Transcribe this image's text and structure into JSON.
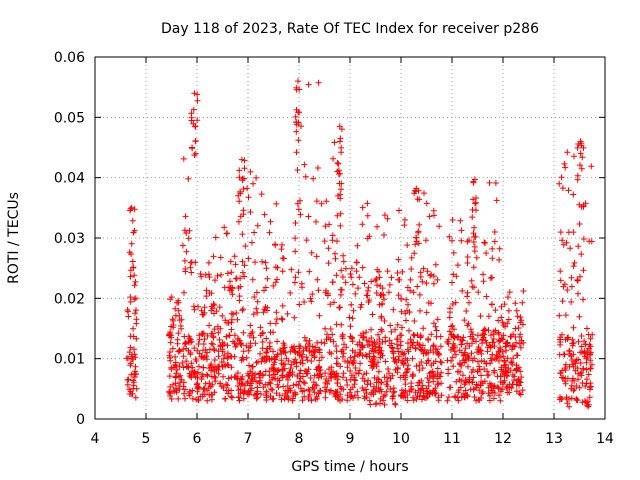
{
  "chart_data": {
    "type": "scatter",
    "title": "Day 118 of 2023, Rate Of TEC Index for receiver p286",
    "xlabel": "GPS time / hours",
    "ylabel": "ROTI / TECUs",
    "xlim": [
      4,
      14
    ],
    "ylim": [
      0,
      0.06
    ],
    "x_ticks": [
      "4",
      "5",
      "6",
      "7",
      "8",
      "9",
      "10",
      "11",
      "12",
      "13",
      "14"
    ],
    "y_ticks": [
      "0",
      "0.01",
      "0.02",
      "0.03",
      "0.04",
      "0.05",
      "0.06"
    ],
    "grid": true,
    "marker": "+",
    "color": "#ff0000",
    "clusters": [
      {
        "x": [
          4.62,
          4.82
        ],
        "y_base": [
          0.003,
          0.012
        ],
        "y_peak": 0.035
      },
      {
        "x": [
          5.45,
          5.72
        ],
        "y_base": [
          0.003,
          0.013
        ],
        "y_peak": 0.021
      },
      {
        "x": [
          5.72,
          6.05
        ],
        "y_base": [
          0.003,
          0.014
        ],
        "y_peak": 0.054
      },
      {
        "x": [
          6.05,
          6.8
        ],
        "y_base": [
          0.003,
          0.015
        ],
        "y_peak": 0.032
      },
      {
        "x": [
          6.8,
          7.3
        ],
        "y_base": [
          0.003,
          0.015
        ],
        "y_peak": 0.043
      },
      {
        "x": [
          7.3,
          7.9
        ],
        "y_base": [
          0.003,
          0.012
        ],
        "y_peak": 0.036
      },
      {
        "x": [
          7.9,
          8.45
        ],
        "y_base": [
          0.003,
          0.013
        ],
        "y_peak": 0.056
      },
      {
        "x": [
          8.5,
          8.95
        ],
        "y_base": [
          0.003,
          0.015
        ],
        "y_peak": 0.048
      },
      {
        "x": [
          8.95,
          9.95
        ],
        "y_base": [
          0.002,
          0.014
        ],
        "y_peak": 0.036
      },
      {
        "x": [
          9.95,
          10.8
        ],
        "y_base": [
          0.003,
          0.014
        ],
        "y_peak": 0.039
      },
      {
        "x": [
          10.9,
          11.4
        ],
        "y_base": [
          0.003,
          0.014
        ],
        "y_peak": 0.034
      },
      {
        "x": [
          11.4,
          11.95
        ],
        "y_base": [
          0.003,
          0.015
        ],
        "y_peak": 0.04
      },
      {
        "x": [
          11.95,
          12.4
        ],
        "y_base": [
          0.004,
          0.013
        ],
        "y_peak": 0.022
      },
      {
        "x": [
          13.1,
          13.75
        ],
        "y_base": [
          0.002,
          0.014
        ],
        "y_peak": 0.046
      }
    ],
    "peaks": [
      {
        "x": 5.95,
        "y": 0.054
      },
      {
        "x": 7.98,
        "y": 0.056
      },
      {
        "x": 8.8,
        "y": 0.0485
      },
      {
        "x": 13.52,
        "y": 0.046
      },
      {
        "x": 6.88,
        "y": 0.043
      },
      {
        "x": 11.45,
        "y": 0.0397
      },
      {
        "x": 10.3,
        "y": 0.0382
      },
      {
        "x": 4.72,
        "y": 0.035
      }
    ]
  }
}
